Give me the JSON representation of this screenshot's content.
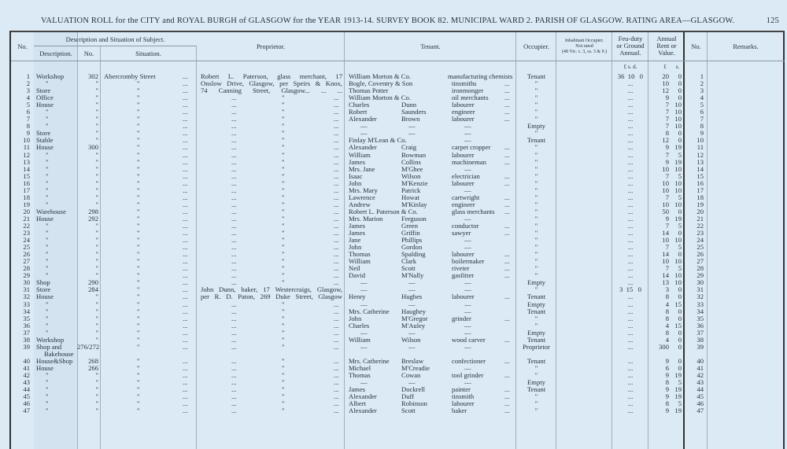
{
  "header": {
    "title": "VALUATION ROLL for the CITY and ROYAL BURGH of GLASGOW for the YEAR 1913-14.   SURVEY BOOK 82.   MUNICIPAL WARD 2.   PARISH OF GLASGOW.   RATING AREA—GLASGOW.",
    "page_number": "125"
  },
  "columns": {
    "no": "No.",
    "desc_group": "Description and Situation of Subject.",
    "description": "Description.",
    "number": "No.",
    "situation": "Situation.",
    "proprietor": "Proprietor.",
    "tenant": "Tenant.",
    "occupier": "Occupier.",
    "inhabitant_1": "Inhabitant Occupier.",
    "inhabitant_2": "Not rated",
    "inhabitant_3": "(48 Vic. c. 3, ss. 3 & 9.)",
    "feu_1": "Feu-duty",
    "feu_2": "or Ground",
    "feu_3": "Annual.",
    "rent_1": "Annual",
    "rent_2": "Rent or",
    "rent_3": "Value.",
    "no_right": "No.",
    "remarks": "Remarks.",
    "feu_units": "£   s.   d.",
    "rent_units_l": "£",
    "rent_units_s": "s."
  },
  "situation_dots": "...",
  "rows": [
    [
      "1",
      "Workshop",
      "302",
      "Abercromby Street",
      "Robert L. Paterson, glass merchant, 17",
      "William Morton & Co.",
      "",
      "manufacturing chemists",
      "",
      "Tenant",
      "36  10   0",
      "20",
      "0"
    ],
    [
      "2",
      "\"",
      "\"",
      "\"",
      "Onslow Drive, Glasgow, per Speirs & Knox,",
      "Bogle, Coventry & Son",
      "",
      "tinsmiths",
      "...",
      "\"",
      "...",
      "10",
      "0"
    ],
    [
      "3",
      "Store",
      "\"",
      "\"",
      "74 Canning Street, Glasgow...     ...     ...",
      "Thomas Potter",
      "",
      "ironmonger",
      "...",
      "\"",
      "...",
      "12",
      "0"
    ],
    [
      "4",
      "Office",
      "\"",
      "\"",
      [
        "...",
        "\"",
        "..."
      ],
      "William Morton & Co.",
      "",
      "oil merchants",
      "...",
      "\"",
      "...",
      "9",
      "0"
    ],
    [
      "5",
      "House",
      "\"",
      "\"",
      [
        "...",
        "\"",
        "..."
      ],
      "Charles",
      "Dunn",
      "labourer",
      "...",
      "\"",
      "...",
      "7",
      "10"
    ],
    [
      "6",
      "\"",
      "\"",
      "\"",
      [
        "...",
        "\"",
        "..."
      ],
      "Robert",
      "Saunders",
      "engineer",
      "...",
      "\"",
      "...",
      "7",
      "10"
    ],
    [
      "7",
      "\"",
      "\"",
      "\"",
      [
        "...",
        "\"",
        "..."
      ],
      "Alexander",
      "Brown",
      "labourer",
      "...",
      "\"",
      "...",
      "7",
      "10"
    ],
    [
      "8",
      "\"",
      "\"",
      "\"",
      [
        "...",
        "\"",
        "..."
      ],
      "—",
      "—",
      "—",
      "",
      "Empty",
      "...",
      "7",
      "10"
    ],
    [
      "9",
      "Store",
      "\"",
      "\"",
      [
        "...",
        "\"",
        "..."
      ],
      "—",
      "—",
      "—",
      "",
      "\"",
      "...",
      "8",
      "0"
    ],
    [
      "10",
      "Stable",
      "\"",
      "\"",
      [
        "...",
        "\"",
        "..."
      ],
      "Finlay M'Lean & Co.",
      "",
      "—",
      "",
      "Tenant",
      "...",
      "12",
      "0"
    ],
    [
      "11",
      "House",
      "300",
      "\"",
      [
        "...",
        "\"",
        "..."
      ],
      "Alexander",
      "Craig",
      "carpet cropper",
      "...",
      "\"",
      "...",
      "9",
      "19"
    ],
    [
      "12",
      "\"",
      "\"",
      "\"",
      [
        "...",
        "\"",
        "..."
      ],
      "William",
      "Bowman",
      "labourer",
      "...",
      "\"",
      "...",
      "7",
      "5"
    ],
    [
      "13",
      "\"",
      "\"",
      "\"",
      [
        "...",
        "\"",
        "..."
      ],
      "James",
      "Collins",
      "machineman",
      "...",
      "\"",
      "...",
      "9",
      "19"
    ],
    [
      "14",
      "\"",
      "\"",
      "\"",
      [
        "...",
        "\"",
        "..."
      ],
      "Mrs. Jane",
      "M'Ghee",
      "—",
      "",
      "\"",
      "...",
      "10",
      "10"
    ],
    [
      "15",
      "\"",
      "\"",
      "\"",
      [
        "...",
        "\"",
        "..."
      ],
      "Isaac",
      "Wilson",
      "electrician",
      "...",
      "\"",
      "...",
      "7",
      "5"
    ],
    [
      "16",
      "\"",
      "\"",
      "\"",
      [
        "...",
        "\"",
        "..."
      ],
      "John",
      "M'Kenzie",
      "labourer",
      "...",
      "\"",
      "...",
      "10",
      "10"
    ],
    [
      "17",
      "\"",
      "\"",
      "\"",
      [
        "...",
        "\"",
        "..."
      ],
      "Mrs. Mary",
      "Patrick",
      "—",
      "",
      "\"",
      "...",
      "10",
      "10"
    ],
    [
      "18",
      "\"",
      "\"",
      "\"",
      [
        "...",
        "\"",
        "..."
      ],
      "Lawrence",
      "Howat",
      "cartwright",
      "...",
      "\"",
      "...",
      "7",
      "5"
    ],
    [
      "19",
      "\"",
      "\"",
      "\"",
      [
        "...",
        "\"",
        "..."
      ],
      "Andrew",
      "M'Kinlay",
      "engineer",
      "...",
      "\"",
      "...",
      "10",
      "10"
    ],
    [
      "20",
      "Warehouse",
      "298",
      "\"",
      [
        "...",
        "\"",
        "..."
      ],
      "Robert L. Paterson & Co.",
      "",
      "glass merchants",
      "...",
      "\"",
      "...",
      "50",
      "0"
    ],
    [
      "21",
      "House",
      "292",
      "\"",
      [
        "...",
        "\"",
        "..."
      ],
      "Mrs. Marion",
      "Ferguson",
      "—",
      "",
      "\"",
      "...",
      "9",
      "19"
    ],
    [
      "22",
      "\"",
      "\"",
      "\"",
      [
        "...",
        "\"",
        "..."
      ],
      "James",
      "Green",
      "conductor",
      "...",
      "\"",
      "...",
      "7",
      "5"
    ],
    [
      "23",
      "\"",
      "\"",
      "\"",
      [
        "...",
        "\"",
        "..."
      ],
      "James",
      "Griffin",
      "sawyer",
      "...",
      "\"",
      "...",
      "14",
      "0"
    ],
    [
      "24",
      "\"",
      "\"",
      "\"",
      [
        "...",
        "\"",
        "..."
      ],
      "Jane",
      "Phillips",
      "—",
      "",
      "\"",
      "...",
      "10",
      "10"
    ],
    [
      "25",
      "\"",
      "\"",
      "\"",
      [
        "...",
        "\"",
        "..."
      ],
      "John",
      "Gordon",
      "—",
      "",
      "\"",
      "...",
      "7",
      "5"
    ],
    [
      "26",
      "\"",
      "\"",
      "\"",
      [
        "...",
        "\"",
        "..."
      ],
      "Thomas",
      "Spalding",
      "labourer",
      "...",
      "\"",
      "...",
      "14",
      "0"
    ],
    [
      "27",
      "\"",
      "\"",
      "\"",
      [
        "...",
        "\"",
        "..."
      ],
      "William",
      "Clark",
      "boilermaker",
      "...",
      "\"",
      "...",
      "10",
      "10"
    ],
    [
      "28",
      "\"",
      "\"",
      "\"",
      [
        "...",
        "\"",
        "..."
      ],
      "Neil",
      "Scott",
      "riveter",
      "...",
      "\"",
      "...",
      "7",
      "5"
    ],
    [
      "29",
      "\"",
      "\"",
      "\"",
      [
        "...",
        "\"",
        "..."
      ],
      "David",
      "M'Nally",
      "gasfitter",
      "...",
      "\"",
      "...",
      "14",
      "10"
    ],
    [
      "30",
      "Shop",
      "290",
      "\"",
      [
        "...",
        "\"",
        "..."
      ],
      "—",
      "—",
      "—",
      "",
      "Empty",
      "...",
      "13",
      "10"
    ],
    [
      "31",
      "Store",
      "284",
      "\"",
      "John Dunn, baker, 17 Westercraigs, Glasgow,",
      "—",
      "—",
      "—",
      "",
      "\"",
      "3  15   0",
      "3",
      "0"
    ],
    [
      "32",
      "House",
      "\"",
      "\"",
      "per R. D. Paton, 269 Duke Street, Glasgow",
      "Henry",
      "Hughes",
      "labourer",
      "...",
      "Tenant",
      "...",
      "8",
      "0"
    ],
    [
      "33",
      "\"",
      "\"",
      "\"",
      [
        "...",
        "\"",
        "..."
      ],
      "—",
      "—",
      "—",
      "",
      "Empty",
      "...",
      "4",
      "15"
    ],
    [
      "34",
      "\"",
      "\"",
      "\"",
      [
        "...",
        "\"",
        "..."
      ],
      "Mrs. Catherine",
      "Haughey",
      "—",
      "",
      "Tenant",
      "...",
      "8",
      "0"
    ],
    [
      "35",
      "\"",
      "\"",
      "\"",
      [
        "...",
        "\"",
        "..."
      ],
      "John",
      "M'Gregor",
      "grinder",
      "...",
      "\"",
      "...",
      "8",
      "0"
    ],
    [
      "36",
      "\"",
      "\"",
      "\"",
      [
        "...",
        "\"",
        "..."
      ],
      "Charles",
      "M'Auley",
      "—",
      "",
      "\"",
      "...",
      "4",
      "15"
    ],
    [
      "37",
      "\"",
      "\"",
      "\"",
      [
        "...",
        "\"",
        "..."
      ],
      "—",
      "—",
      "—",
      "",
      "Empty",
      "...",
      "8",
      "0"
    ],
    [
      "38",
      "Workshop",
      "\"",
      "\"",
      [
        "...",
        "\"",
        "..."
      ],
      "William",
      "Wilson",
      "wood carver",
      "...",
      "Tenant",
      "...",
      "4",
      "0"
    ],
    [
      "39",
      "Shop and",
      "276/272",
      "\"",
      [
        "...",
        "\"",
        "..."
      ],
      "—",
      "—",
      "—",
      "",
      "Proprietor",
      "...",
      "300",
      "0",
      "Bakehouse"
    ],
    [
      "40",
      "House&Shop",
      "268",
      "\"",
      [
        "...",
        "\"",
        "..."
      ],
      "Mrs. Catherine",
      "Breslaw",
      "confectioner",
      "...",
      "Tenant",
      "...",
      "9",
      "0"
    ],
    [
      "41",
      "House",
      "266",
      "\"",
      [
        "...",
        "\"",
        "..."
      ],
      "Michael",
      "M'Creadie",
      "—",
      "",
      "\"",
      "...",
      "6",
      "0"
    ],
    [
      "42",
      "\"",
      "\"",
      "\"",
      [
        "...",
        "\"",
        "..."
      ],
      "Thomas",
      "Cowan",
      "tool grinder",
      "...",
      "\"",
      "...",
      "9",
      "19"
    ],
    [
      "43",
      "\"",
      "\"",
      "\"",
      [
        "...",
        "\"",
        "..."
      ],
      "—",
      "—",
      "—",
      "",
      "Empty",
      "...",
      "8",
      "5"
    ],
    [
      "44",
      "\"",
      "\"",
      "\"",
      [
        "...",
        "\"",
        "..."
      ],
      "James",
      "Dockrell",
      "painter",
      "...",
      "Tenant",
      "...",
      "9",
      "19"
    ],
    [
      "45",
      "\"",
      "\"",
      "\"",
      [
        "...",
        "\"",
        "..."
      ],
      "Alexander",
      "Duff",
      "tinsmith",
      "...",
      "\"",
      "...",
      "9",
      "19"
    ],
    [
      "46",
      "\"",
      "\"",
      "\"",
      [
        "...",
        "\"",
        "..."
      ],
      "Albert",
      "Robinson",
      "labourer",
      "...",
      "\"",
      "...",
      "8",
      "5"
    ],
    [
      "47",
      "\"",
      "\"",
      "\"",
      [
        "...",
        "\"",
        "..."
      ],
      "Alexander",
      "Scott",
      "baker",
      "...",
      "\"",
      "...",
      "9",
      "19"
    ]
  ]
}
